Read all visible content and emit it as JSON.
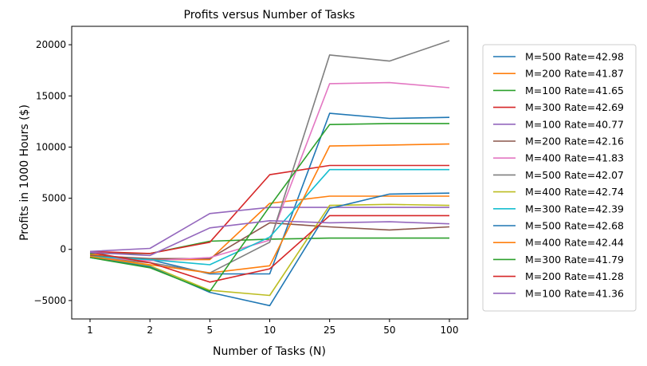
{
  "chart_data": {
    "type": "line",
    "title": "Profits versus Number of Tasks",
    "xlabel": "Number of Tasks (N)",
    "ylabel": "Profits in 1000 Hours ($)",
    "categories": [
      "1",
      "2",
      "5",
      "10",
      "25",
      "50",
      "100"
    ],
    "ylim": [
      -6800,
      21800
    ],
    "yticks": [
      -5000,
      0,
      5000,
      10000,
      15000,
      20000
    ],
    "ytick_labels": [
      "−5000",
      "0",
      "5000",
      "10000",
      "15000",
      "20000"
    ],
    "grid": false,
    "legend_position": "outside-right",
    "series": [
      {
        "name": "M=500 Rate=42.98",
        "color": "#1f77b4",
        "values": [
          -800,
          -1000,
          -2400,
          -2400,
          13300,
          12800,
          12900
        ]
      },
      {
        "name": "M=200 Rate=41.87",
        "color": "#ff7f0e",
        "values": [
          -500,
          -1000,
          -1000,
          4500,
          5200,
          5200,
          5200
        ]
      },
      {
        "name": "M=100 Rate=41.65",
        "color": "#2ca02c",
        "values": [
          -400,
          -400,
          800,
          1000,
          1100,
          1100,
          1100
        ]
      },
      {
        "name": "M=300 Rate=42.69",
        "color": "#d62728",
        "values": [
          -200,
          -400,
          700,
          7300,
          8200,
          8200,
          8200
        ]
      },
      {
        "name": "M=100 Rate=40.77",
        "color": "#9467bd",
        "values": [
          -200,
          100,
          3500,
          4100,
          4100,
          4100,
          4100
        ]
      },
      {
        "name": "M=200 Rate=42.16",
        "color": "#8c564b",
        "values": [
          -600,
          -900,
          -900,
          2600,
          2200,
          1900,
          2200
        ]
      },
      {
        "name": "M=400 Rate=41.83",
        "color": "#e377c2",
        "values": [
          -800,
          -1100,
          -800,
          900,
          16200,
          16300,
          15800
        ]
      },
      {
        "name": "M=500 Rate=42.07",
        "color": "#7f7f7f",
        "values": [
          -800,
          -1300,
          -2300,
          700,
          19000,
          18400,
          20400
        ]
      },
      {
        "name": "M=400 Rate=42.74",
        "color": "#bcbd22",
        "values": [
          -700,
          -1600,
          -4000,
          -4500,
          4300,
          4400,
          4300
        ]
      },
      {
        "name": "M=300 Rate=42.39",
        "color": "#17becf",
        "values": [
          -700,
          -1000,
          -1500,
          1200,
          7800,
          7800,
          7800
        ]
      },
      {
        "name": "M=500 Rate=42.68",
        "color": "#1f77b4",
        "values": [
          -800,
          -1700,
          -4200,
          -5500,
          4000,
          5400,
          5500
        ]
      },
      {
        "name": "M=400 Rate=42.44",
        "color": "#ff7f0e",
        "values": [
          -700,
          -1500,
          -2300,
          -1600,
          10100,
          10200,
          10300
        ]
      },
      {
        "name": "M=300 Rate=41.79",
        "color": "#2ca02c",
        "values": [
          -800,
          -1800,
          -4100,
          4200,
          12200,
          12300,
          12300
        ]
      },
      {
        "name": "M=200 Rate=41.28",
        "color": "#d62728",
        "values": [
          -300,
          -1300,
          -3200,
          -1900,
          3300,
          3300,
          3300
        ]
      },
      {
        "name": "M=100 Rate=41.36",
        "color": "#9467bd",
        "values": [
          -300,
          -600,
          2100,
          2800,
          2600,
          2700,
          2500
        ]
      }
    ]
  }
}
